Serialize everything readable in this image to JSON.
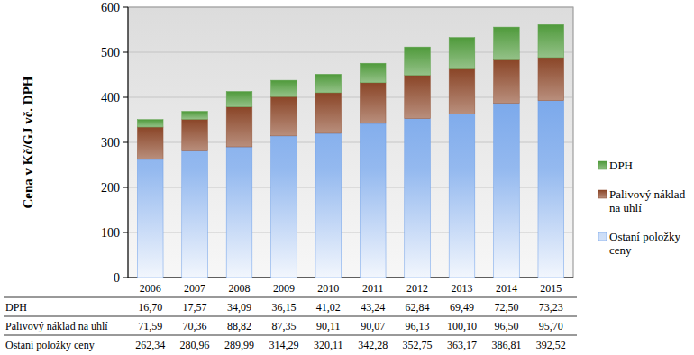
{
  "chart_data": {
    "type": "bar",
    "stacked": true,
    "y_label": "Cena v Kč/GJ vč. DPH",
    "categories": [
      "2006",
      "2007",
      "2008",
      "2009",
      "2010",
      "2011",
      "2012",
      "2013",
      "2014",
      "2015"
    ],
    "ylim": [
      0,
      600
    ],
    "yticks": [
      0,
      100,
      200,
      300,
      400,
      500,
      600
    ],
    "grid": true,
    "legend": "right",
    "series": [
      {
        "name": "Ostaní položky ceny",
        "color": "#5a93e6",
        "values": [
          262.34,
          280.96,
          289.99,
          314.29,
          320.11,
          342.28,
          352.75,
          363.17,
          386.81,
          392.52
        ],
        "value_labels": [
          "262,34",
          "280,96",
          "289,99",
          "314,29",
          "320,11",
          "342,28",
          "352,75",
          "363,17",
          "386,81",
          "392,52"
        ]
      },
      {
        "name": "Palivový náklad na uhlí",
        "color": "#8a4527",
        "values": [
          71.59,
          70.36,
          88.82,
          87.35,
          90.11,
          90.07,
          96.13,
          100.1,
          96.5,
          95.7
        ],
        "value_labels": [
          "71,59",
          "70,36",
          "88,82",
          "87,35",
          "90,11",
          "90,07",
          "96,13",
          "100,10",
          "96,50",
          "95,70"
        ]
      },
      {
        "name": "DPH",
        "color": "#4f9a3b",
        "values": [
          16.7,
          17.57,
          34.09,
          36.15,
          41.02,
          43.24,
          62.84,
          69.49,
          72.5,
          73.23
        ],
        "value_labels": [
          "16,70",
          "17,57",
          "34,09",
          "36,15",
          "41,02",
          "43,24",
          "62,84",
          "69,49",
          "72,50",
          "73,23"
        ]
      }
    ]
  }
}
